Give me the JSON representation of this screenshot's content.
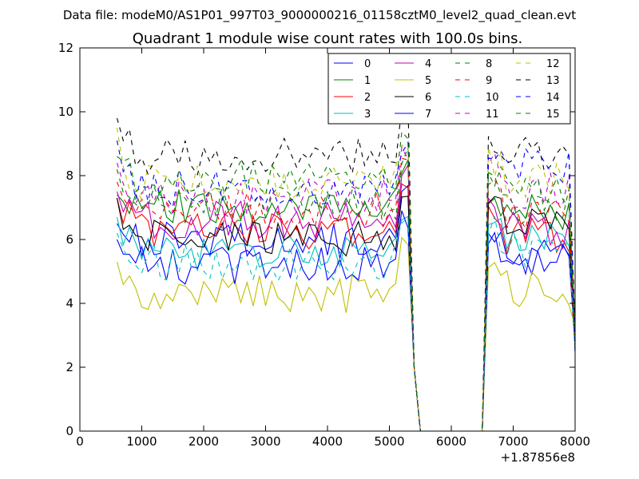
{
  "header_text": "Data file: modeM0/AS1P01_997T03_9000000216_01158cztM0_level2_quad_clean.evt",
  "chart_data": {
    "type": "line",
    "title": "Quadrant 1 module wise count rates with 100.0s bins.",
    "xlabel": "",
    "ylabel": "",
    "x_offset_label": "+1.87856e8",
    "xlim": [
      0,
      8000
    ],
    "ylim": [
      0,
      12
    ],
    "xticks": [
      0,
      1000,
      2000,
      3000,
      4000,
      5000,
      6000,
      7000,
      8000
    ],
    "yticks": [
      0,
      2,
      4,
      6,
      8,
      10,
      12
    ],
    "grid": false,
    "legend_placement": "top-right",
    "legend_columns": 4,
    "x_segments": [
      {
        "start": 600,
        "end": 5300,
        "step": 100
      },
      {
        "start": 5400,
        "end": 6500,
        "step": 100
      },
      {
        "start": 6600,
        "end": 8000,
        "step": 100
      }
    ],
    "gap_values": [
      2.0,
      0.0,
      0,
      0,
      0,
      0,
      0,
      0,
      0,
      0,
      0,
      0
    ],
    "series": [
      {
        "name": "0",
        "color": "#0000ff",
        "dash": "solid",
        "level_a": 6.0,
        "level_b": 5.5,
        "start": 6.5,
        "seed": 1
      },
      {
        "name": "1",
        "color": "#008000",
        "dash": "solid",
        "level_a": 7.0,
        "level_b": 6.8,
        "start": 7.4,
        "seed": 2
      },
      {
        "name": "2",
        "color": "#ff0000",
        "dash": "solid",
        "level_a": 6.3,
        "level_b": 6.1,
        "start": 7.3,
        "seed": 3
      },
      {
        "name": "3",
        "color": "#00bfbf",
        "dash": "solid",
        "level_a": 5.6,
        "level_b": 5.9,
        "start": 6.7,
        "seed": 4
      },
      {
        "name": "4",
        "color": "#bf00bf",
        "dash": "solid",
        "level_a": 6.6,
        "level_b": 6.3,
        "start": 7.5,
        "seed": 5
      },
      {
        "name": "5",
        "color": "#bfbf00",
        "dash": "solid",
        "level_a": 4.3,
        "level_b": 4.5,
        "start": 5.3,
        "seed": 6
      },
      {
        "name": "6",
        "color": "#000000",
        "dash": "solid",
        "level_a": 6.0,
        "level_b": 6.5,
        "start": 7.3,
        "seed": 7
      },
      {
        "name": "7",
        "color": "#0000ff",
        "dash": "solid",
        "level_a": 5.2,
        "level_b": 5.3,
        "start": 6.0,
        "seed": 8
      },
      {
        "name": "8",
        "color": "#008000",
        "dash": "dashed",
        "level_a": 7.1,
        "level_b": 7.0,
        "start": 8.2,
        "seed": 9
      },
      {
        "name": "9",
        "color": "#ff0000",
        "dash": "dashed",
        "level_a": 6.9,
        "level_b": 6.8,
        "start": 7.8,
        "seed": 10
      },
      {
        "name": "10",
        "color": "#00bfbf",
        "dash": "dashed",
        "level_a": 5.3,
        "level_b": 5.6,
        "start": 6.2,
        "seed": 11
      },
      {
        "name": "11",
        "color": "#bf00bf",
        "dash": "dashed",
        "level_a": 7.3,
        "level_b": 7.5,
        "start": 8.4,
        "seed": 12
      },
      {
        "name": "12",
        "color": "#bfbf00",
        "dash": "dashed",
        "level_a": 7.8,
        "level_b": 7.9,
        "start": 9.5,
        "seed": 13
      },
      {
        "name": "13",
        "color": "#000000",
        "dash": "dashed",
        "level_a": 8.6,
        "level_b": 8.6,
        "start": 9.8,
        "seed": 14
      },
      {
        "name": "14",
        "color": "#0000ff",
        "dash": "dashed",
        "level_a": 7.6,
        "level_b": 8.3,
        "start": 9.1,
        "seed": 15
      },
      {
        "name": "15",
        "color": "#008000",
        "dash": "dashed",
        "level_a": 7.9,
        "level_b": 7.4,
        "start": 8.6,
        "seed": 16
      }
    ]
  }
}
